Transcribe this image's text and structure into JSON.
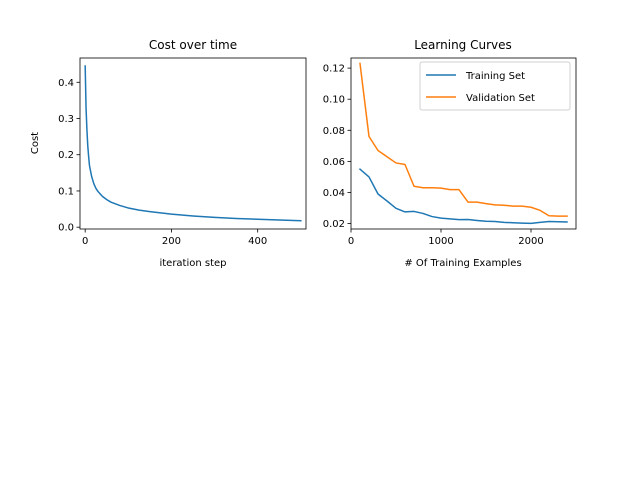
{
  "chart_data": [
    {
      "type": "line",
      "title": "Cost over time",
      "xlabel": "iteration step",
      "ylabel": "Cost",
      "xlim": [
        -12,
        512
      ],
      "ylim": [
        -0.005,
        0.467
      ],
      "xticks": [
        0,
        200,
        400
      ],
      "yticks": [
        0.0,
        0.1,
        0.2,
        0.3,
        0.4
      ],
      "grid": false,
      "series": [
        {
          "color": "#1f77b4",
          "x": [
            0,
            2,
            4,
            6,
            8,
            10,
            15,
            20,
            25,
            30,
            40,
            50,
            60,
            80,
            100,
            125,
            150,
            200,
            250,
            300,
            350,
            400,
            450,
            500
          ],
          "values": [
            0.445,
            0.33,
            0.27,
            0.225,
            0.195,
            0.17,
            0.14,
            0.12,
            0.107,
            0.098,
            0.085,
            0.076,
            0.069,
            0.06,
            0.053,
            0.047,
            0.043,
            0.036,
            0.031,
            0.027,
            0.024,
            0.022,
            0.02,
            0.018
          ]
        }
      ]
    },
    {
      "type": "line",
      "title": "Learning Curves",
      "xlabel": "# Of Training Examples",
      "ylabel": "",
      "xlim": [
        0,
        2500
      ],
      "ylim": [
        0.0165,
        0.1265
      ],
      "xticks": [
        0,
        1000,
        2000
      ],
      "yticks": [
        0.02,
        0.04,
        0.06,
        0.08,
        0.1,
        0.12
      ],
      "ytick_labels": [
        "0.02",
        "0.04",
        "0.06",
        "0.08",
        "0.10",
        "0.12"
      ],
      "grid": false,
      "legend_position": "top-right",
      "series": [
        {
          "name": "Training Set",
          "color": "#1f77b4",
          "x": [
            100,
            200,
            300,
            400,
            500,
            600,
            700,
            800,
            900,
            1000,
            1100,
            1200,
            1300,
            1400,
            1500,
            1600,
            1700,
            1800,
            1900,
            2000,
            2100,
            2200,
            2300,
            2400
          ],
          "values": [
            0.055,
            0.05,
            0.039,
            0.0345,
            0.0298,
            0.0275,
            0.0278,
            0.0265,
            0.0245,
            0.0235,
            0.023,
            0.0225,
            0.0226,
            0.022,
            0.0215,
            0.0213,
            0.0208,
            0.0205,
            0.0203,
            0.0201,
            0.0208,
            0.0213,
            0.0212,
            0.021
          ]
        },
        {
          "name": "Validation Set",
          "color": "#ff7f0e",
          "x": [
            100,
            200,
            300,
            400,
            500,
            600,
            700,
            800,
            900,
            1000,
            1100,
            1200,
            1300,
            1400,
            1500,
            1600,
            1700,
            1800,
            1900,
            2000,
            2100,
            2200,
            2300,
            2400
          ],
          "values": [
            0.123,
            0.076,
            0.067,
            0.063,
            0.059,
            0.058,
            0.044,
            0.043,
            0.043,
            0.0428,
            0.0418,
            0.0418,
            0.0338,
            0.0338,
            0.0328,
            0.032,
            0.0318,
            0.0312,
            0.0312,
            0.0305,
            0.0285,
            0.025,
            0.0248,
            0.0248
          ]
        }
      ]
    }
  ]
}
